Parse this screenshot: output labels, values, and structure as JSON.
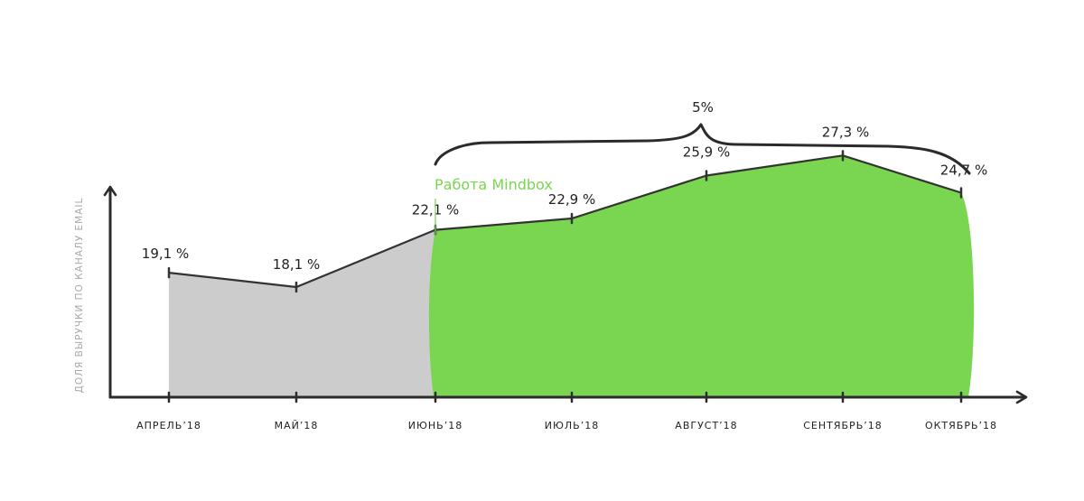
{
  "chart_data": {
    "type": "area",
    "ylabel": "ДОЛЯ ВЫРУЧКИ ПО КАНАЛУ EMAIL",
    "xlabel": "",
    "categories": [
      "АПРЕЛЬ’18",
      "МАЙ’18",
      "ИЮНЬ’18",
      "ИЮЛЬ’18",
      "АВГУСТ’18",
      "СЕНТЯБРЬ’18",
      "ОКТЯБРЬ’18"
    ],
    "values": [
      19.1,
      18.1,
      22.1,
      22.9,
      25.9,
      27.3,
      24.7
    ],
    "value_labels": [
      "19,1 %",
      "18,1 %",
      "22,1 %",
      "22,9 %",
      "25,9 %",
      "27,3 %",
      "24,7 %"
    ],
    "ylim": [
      10,
      30
    ],
    "grid": false,
    "segments": [
      {
        "from": 0,
        "to": 2,
        "color": "#cccccc"
      },
      {
        "from": 2,
        "to": 6,
        "color": "#7ad650"
      }
    ],
    "annotation": {
      "text": "Работа Mindbox",
      "at_index": 2,
      "color": "#7ad650"
    },
    "brace": {
      "label": "5%",
      "from_index": 2,
      "to_index": 6
    }
  },
  "colors": {
    "axis": "#2b2b2b",
    "line": "#333333",
    "gray_area": "#cccccc",
    "green_area": "#7ad650",
    "ylabel": "#a8a8a8"
  }
}
